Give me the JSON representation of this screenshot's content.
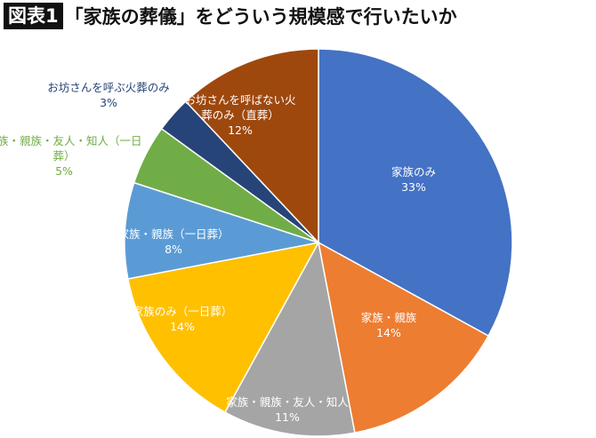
{
  "title": {
    "badge": "図表1",
    "text": "「家族の葬儀」をどういう規模感で行いたいか"
  },
  "chart_data": {
    "type": "pie",
    "title": "「家族の葬儀」をどういう規模感で行いたいか",
    "start": "top, clockwise",
    "slices": [
      {
        "label": "家族のみ",
        "label_lines": [
          "家族のみ"
        ],
        "value": 33,
        "color": "#4472C4",
        "label_color": "#ffffff"
      },
      {
        "label": "家族・親族",
        "label_lines": [
          "家族・親族"
        ],
        "value": 14,
        "color": "#ED7D31",
        "label_color": "#ffffff"
      },
      {
        "label": "家族・親族・友人・知人",
        "label_lines": [
          "家族・親族・友人・知人"
        ],
        "value": 11,
        "color": "#A5A5A5",
        "label_color": "#ffffff"
      },
      {
        "label": "家族のみ（一日葬）",
        "label_lines": [
          "家族のみ（一日葬）"
        ],
        "value": 14,
        "color": "#FFC000",
        "label_color": "#ffffff"
      },
      {
        "label": "家族・親族（一日葬）",
        "label_lines": [
          "家族・親族（一日葬）"
        ],
        "value": 8,
        "color": "#5B9BD5",
        "label_color": "#ffffff"
      },
      {
        "label": "家族・親族・友人・知人（一日葬）",
        "label_lines": [
          "家族・親族・友人・知人（一日",
          "葬）"
        ],
        "value": 5,
        "color": "#70AD47",
        "label_color": "#70AD47"
      },
      {
        "label": "お坊さんを呼ぶ火葬のみ",
        "label_lines": [
          "お坊さんを呼ぶ火葬のみ"
        ],
        "value": 3,
        "color": "#264478",
        "label_color": "#264478"
      },
      {
        "label": "お坊さんを呼ばない火葬のみ（直葬）",
        "label_lines": [
          "お坊さんを呼ばない火",
          "葬のみ（直葬）"
        ],
        "value": 12,
        "color": "#9E480E",
        "label_color": "#ffffff"
      }
    ]
  }
}
